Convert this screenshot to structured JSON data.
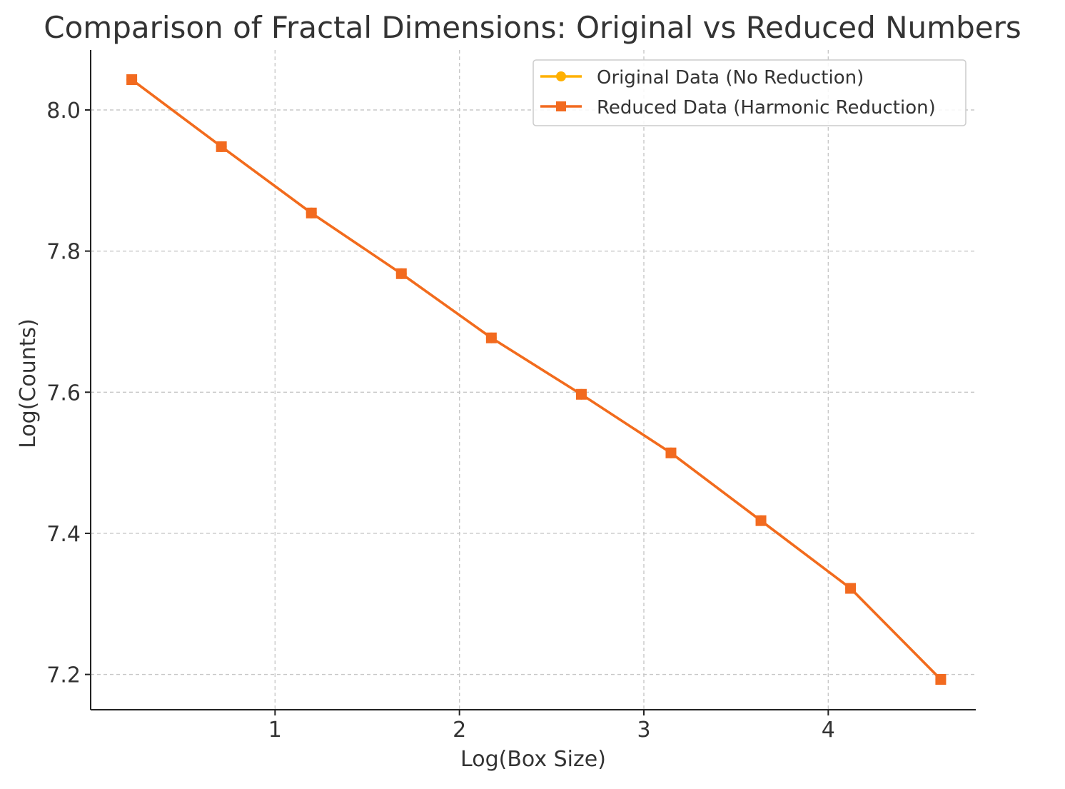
{
  "chart_data": {
    "type": "line",
    "title": "Comparison of Fractal Dimensions: Original vs Reduced Numbers",
    "xlabel": "Log(Box Size)",
    "ylabel": "Log(Counts)",
    "xlim": [
      0.0,
      4.8
    ],
    "ylim": [
      7.15,
      8.085
    ],
    "x_ticks": [
      1,
      2,
      3,
      4
    ],
    "y_ticks": [
      7.2,
      7.4,
      7.6,
      7.8,
      8.0
    ],
    "grid": true,
    "legend_position": "top-right",
    "x": [
      0.223,
      0.709,
      1.197,
      1.685,
      2.173,
      2.661,
      3.147,
      3.635,
      4.121,
      4.61
    ],
    "series": [
      {
        "name": "Original Data (No Reduction)",
        "color": "#ffb000",
        "marker": "circle",
        "values": [
          8.043,
          7.948,
          7.854,
          7.768,
          7.677,
          7.597,
          7.514,
          7.418,
          7.322,
          7.193
        ]
      },
      {
        "name": "Reduced Data (Harmonic Reduction)",
        "color": "#f26a1f",
        "marker": "square",
        "values": [
          8.043,
          7.948,
          7.854,
          7.768,
          7.677,
          7.597,
          7.514,
          7.418,
          7.322,
          7.193
        ]
      }
    ]
  }
}
